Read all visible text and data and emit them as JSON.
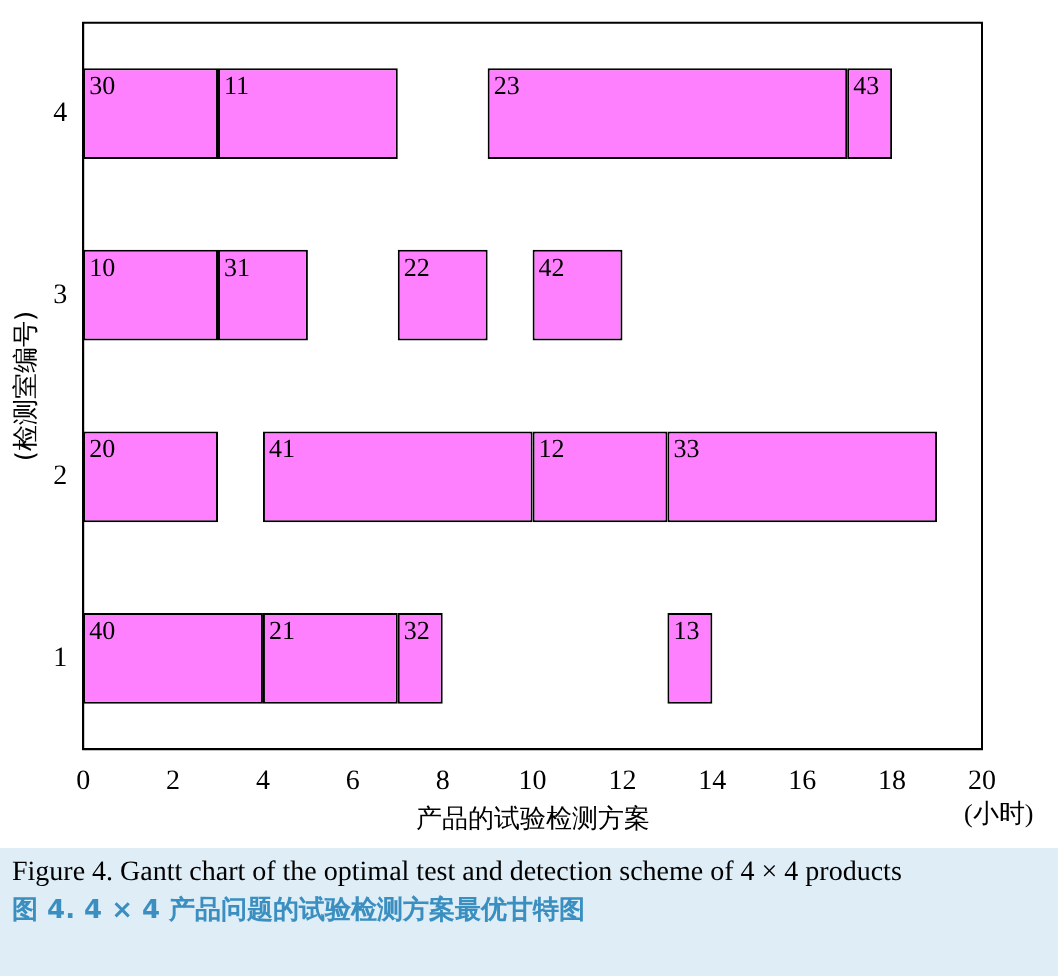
{
  "chart_data": {
    "type": "bar",
    "orientation": "horizontal",
    "stacked": false,
    "categories": [
      "4",
      "3",
      "2",
      "1"
    ],
    "series": [
      {
        "color": "#ff80ff",
        "base": [
          0,
          0,
          0,
          0
        ],
        "values": [
          3,
          3,
          3,
          4
        ]
      },
      {
        "color": "#ff80ff",
        "base": [
          3,
          3,
          4,
          4
        ],
        "values": [
          4,
          2,
          6,
          3
        ]
      },
      {
        "color": "#ff80ff",
        "base": [
          9,
          7,
          10,
          7
        ],
        "values": [
          8,
          2,
          3,
          1
        ]
      },
      {
        "color": "#ff80ff",
        "base": [
          17,
          10,
          13,
          13
        ],
        "values": [
          1,
          2,
          6,
          1
        ]
      }
    ],
    "xlim": [
      0,
      20
    ],
    "xticks": [
      0,
      2,
      4,
      6,
      8,
      10,
      12,
      14,
      16,
      18,
      20
    ],
    "xlabel": "产品的试验检测方案",
    "ylabel": "(检测室编号)",
    "annotations": [
      "(小时)",
      "Figure 4. Gantt chart of the optimal test and detection scheme of 4 × 4 products",
      "图 4. 4 × 4 产品问题的试验检测方案最优甘特图",
      {
        "text": "30",
        "x": 0,
        "y": "4"
      },
      {
        "text": "11",
        "x": 3,
        "y": "4"
      },
      {
        "text": "23",
        "x": 9,
        "y": "4"
      },
      {
        "text": "43",
        "x": 17,
        "y": "4"
      },
      {
        "text": "10",
        "x": 0,
        "y": "3"
      },
      {
        "text": "31",
        "x": 3,
        "y": "3"
      },
      {
        "text": "22",
        "x": 7,
        "y": "3"
      },
      {
        "text": "42",
        "x": 10,
        "y": "3"
      },
      {
        "text": "20",
        "x": 0,
        "y": "2"
      },
      {
        "text": "41",
        "x": 4,
        "y": "2"
      },
      {
        "text": "12",
        "x": 10,
        "y": "2"
      },
      {
        "text": "33",
        "x": 13,
        "y": "2"
      },
      {
        "text": "40",
        "x": 0,
        "y": "1"
      },
      {
        "text": "21",
        "x": 4,
        "y": "1"
      },
      {
        "text": "32",
        "x": 7,
        "y": "1"
      },
      {
        "text": "13",
        "x": 13,
        "y": "1"
      }
    ],
    "grid": false,
    "legend": false
  }
}
